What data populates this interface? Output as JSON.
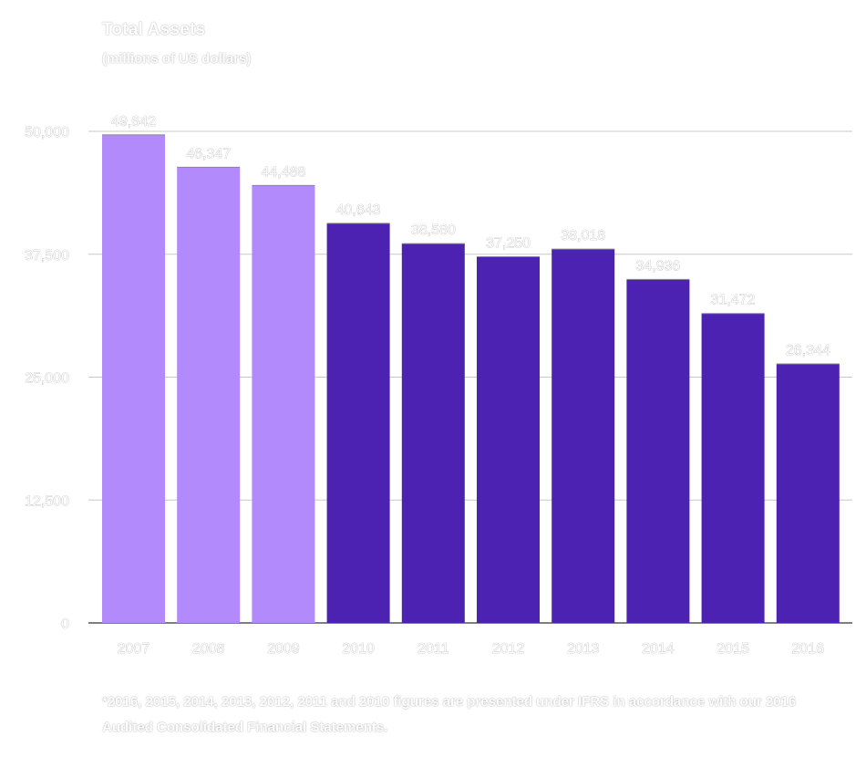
{
  "chart_data": {
    "type": "bar",
    "title": "Total Assets",
    "subtitle": "(millions of US dollars)",
    "categories": [
      "2007",
      "2008",
      "2009",
      "2010",
      "2011",
      "2012",
      "2013",
      "2014",
      "2015",
      "2016"
    ],
    "values": [
      49642,
      46347,
      44488,
      40643,
      38580,
      37250,
      38018,
      34936,
      31472,
      26344
    ],
    "value_labels": [
      "49,642",
      "46,347",
      "44,488",
      "40,643",
      "38,580",
      "37,250",
      "38,018",
      "34,936",
      "31,472",
      "26,344"
    ],
    "y_ticks": [
      0,
      12500,
      25000,
      37500,
      50000
    ],
    "y_tick_labels": [
      "0",
      "12,500",
      "25,000",
      "37,500",
      "50,000"
    ],
    "ylim": [
      0,
      50000
    ],
    "grid": true,
    "xlabel": "",
    "ylabel": ""
  },
  "colors": {
    "light_bar": "#b38afb",
    "dark_bar": "#4b22b2",
    "grid": "#c8c8c8",
    "axis": "#555555"
  },
  "light_bar_count": 3,
  "footnote": "*2016, 2015, 2014, 2013, 2012, 2011 and 2010 figures are presented under IFRS in accordance with our 2016 Audited Consolidated Financial Statements."
}
